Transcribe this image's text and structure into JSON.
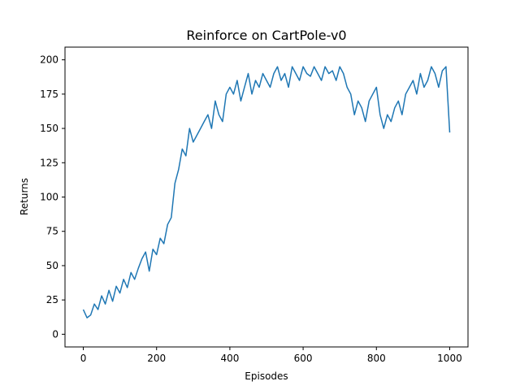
{
  "chart_data": {
    "type": "line",
    "title": "Reinforce on CartPole-v0",
    "xlabel": "Episodes",
    "ylabel": "Returns",
    "xlim": [
      -50,
      1050
    ],
    "ylim": [
      0,
      200
    ],
    "xticks": [
      0,
      200,
      400,
      600,
      800,
      1000
    ],
    "yticks": [
      0,
      25,
      50,
      75,
      100,
      125,
      150,
      175,
      200
    ],
    "grid": false,
    "color": "#1f77b4",
    "series": [
      {
        "x": [
          0,
          10,
          20,
          30,
          40,
          50,
          60,
          70,
          80,
          90,
          100,
          110,
          120,
          130,
          140,
          150,
          160,
          170,
          180,
          190,
          200,
          210,
          220,
          230,
          240,
          250,
          260,
          270,
          280,
          290,
          300,
          310,
          320,
          330,
          340,
          350,
          360,
          370,
          380,
          390,
          400,
          410,
          420,
          430,
          440,
          450,
          460,
          470,
          480,
          490,
          500,
          510,
          520,
          530,
          540,
          550,
          560,
          570,
          580,
          590,
          600,
          610,
          620,
          630,
          640,
          650,
          660,
          670,
          680,
          690,
          700,
          710,
          720,
          730,
          740,
          750,
          760,
          770,
          780,
          790,
          800,
          810,
          820,
          830,
          840,
          850,
          860,
          870,
          880,
          890,
          900,
          910,
          920,
          930,
          940,
          950,
          960,
          970,
          980,
          990,
          1000
        ],
        "y": [
          18,
          12,
          14,
          22,
          18,
          28,
          22,
          32,
          24,
          35,
          30,
          40,
          34,
          45,
          40,
          48,
          55,
          60,
          46,
          62,
          58,
          70,
          66,
          80,
          85,
          110,
          120,
          135,
          130,
          150,
          140,
          145,
          150,
          155,
          160,
          150,
          170,
          160,
          155,
          175,
          180,
          175,
          185,
          170,
          180,
          190,
          175,
          185,
          180,
          190,
          185,
          180,
          190,
          195,
          185,
          190,
          180,
          195,
          190,
          185,
          195,
          190,
          188,
          195,
          190,
          185,
          195,
          190,
          192,
          185,
          195,
          190,
          180,
          175,
          160,
          170,
          165,
          155,
          170,
          175,
          180,
          160,
          150,
          160,
          155,
          165,
          170,
          160,
          175,
          180,
          185,
          175,
          190,
          180,
          185,
          195,
          190,
          180,
          192,
          195,
          147
        ]
      }
    ]
  }
}
